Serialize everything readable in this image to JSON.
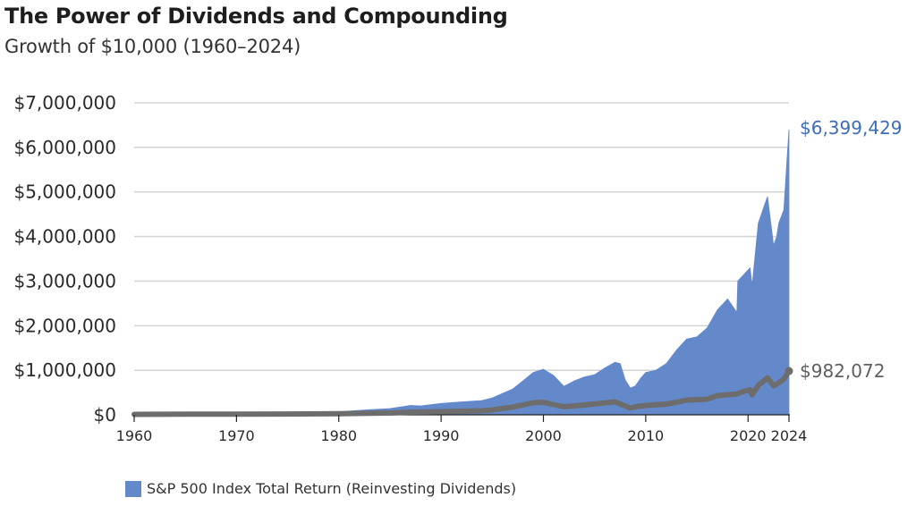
{
  "colors": {
    "total_return": "#6489cb",
    "price": "#6d6d6d",
    "grid": "#d5d5d5",
    "total_label": "#3d6cb8",
    "price_label": "#5f5f5f"
  },
  "chart_data": {
    "type": "area",
    "title": "The Power of Dividends and Compounding",
    "subtitle": "Growth of $10,000 (1960–2024)",
    "xlim": [
      1960,
      2024
    ],
    "ylim": [
      0,
      7000000
    ],
    "x_ticks": [
      1960,
      1970,
      1980,
      1990,
      2000,
      2010,
      2020,
      2024
    ],
    "x_tick_labels": [
      "1960",
      "1970",
      "1980",
      "1990",
      "2000",
      "2010",
      "2020",
      "2024"
    ],
    "y_ticks": [
      0,
      1000000,
      2000000,
      3000000,
      4000000,
      5000000,
      6000000,
      7000000
    ],
    "y_tick_labels": [
      "$0",
      "$1,000,000",
      "$2,000,000",
      "$3,000,000",
      "$4,000,000",
      "$5,000,000",
      "$6,000,000",
      "$7,000,000"
    ],
    "grid": true,
    "legend_position": "bottom-left",
    "legend_label": "S&P 500 Index Total Return (Reinvesting Dividends)",
    "end_labels": {
      "total_return": "$6,399,429",
      "price": "$982,072"
    },
    "series": [
      {
        "name": "S&P 500 Index Total Return (Reinvesting Dividends)",
        "style": "area",
        "x": [
          1960,
          1965,
          1970,
          1975,
          1980,
          1983,
          1985,
          1987,
          1988,
          1990,
          1992,
          1994,
          1995,
          1997,
          1998,
          1999,
          2000,
          2001,
          2002,
          2003,
          2004,
          2005,
          2006,
          2007,
          2007.5,
          2008,
          2008.5,
          2009,
          2009.5,
          2010,
          2011,
          2012,
          2013,
          2014,
          2015,
          2016,
          2017,
          2018,
          2018.9,
          2019,
          2020.2,
          2020.4,
          2021,
          2021.9,
          2022.5,
          2022.8,
          2023,
          2023.5,
          2023.8,
          2024
        ],
        "values": [
          10000,
          20000,
          28000,
          35000,
          70000,
          115000,
          140000,
          210000,
          200000,
          255000,
          290000,
          320000,
          380000,
          580000,
          760000,
          950000,
          1020000,
          880000,
          640000,
          760000,
          850000,
          900000,
          1050000,
          1180000,
          1150000,
          780000,
          600000,
          650000,
          820000,
          950000,
          1000000,
          1150000,
          1450000,
          1700000,
          1750000,
          1950000,
          2350000,
          2600000,
          2300000,
          3000000,
          3300000,
          2900000,
          4300000,
          4900000,
          3800000,
          4000000,
          4300000,
          4600000,
          5700000,
          6399429
        ]
      },
      {
        "name": "",
        "style": "line",
        "x": [
          1960,
          1965,
          1970,
          1975,
          1980,
          1983,
          1985,
          1987,
          1990,
          1992,
          1994,
          1995,
          1997,
          1999,
          2000,
          2002,
          2004,
          2007,
          2008.5,
          2009,
          2010,
          2012,
          2013,
          2014,
          2016,
          2017,
          2018.9,
          2019.5,
          2020.2,
          2020.4,
          2021,
          2021.9,
          2022.5,
          2023,
          2023.5,
          2024
        ],
        "values": [
          10000,
          14000,
          17000,
          18000,
          25000,
          35000,
          40000,
          60000,
          70000,
          80000,
          90000,
          110000,
          175000,
          270000,
          280000,
          180000,
          220000,
          290000,
          150000,
          180000,
          210000,
          240000,
          280000,
          330000,
          350000,
          430000,
          470000,
          520000,
          560000,
          450000,
          660000,
          830000,
          650000,
          720000,
          800000,
          982072
        ]
      }
    ]
  }
}
